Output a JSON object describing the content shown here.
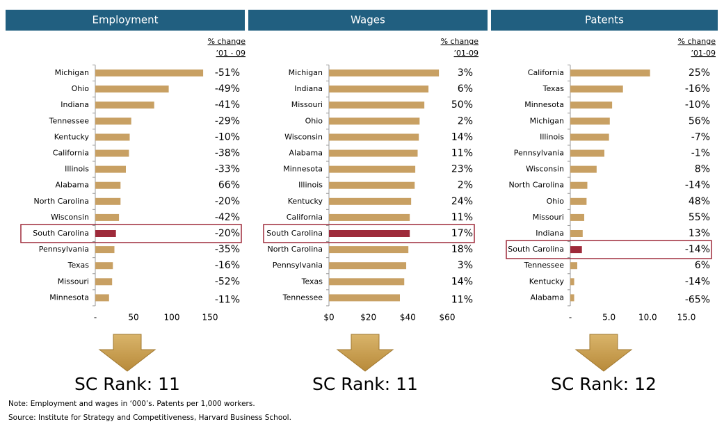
{
  "chart_data": [
    {
      "type": "bar",
      "orientation": "horizontal",
      "title": "Employment",
      "categories": [
        "Michigan",
        "Ohio",
        "Indiana",
        "Tennessee",
        "Kentucky",
        "California",
        "Illinois",
        "Alabama",
        "North Carolina",
        "Wisconsin",
        "South Carolina",
        "Pennsylvania",
        "Texas",
        "Missouri",
        "Minnesota"
      ],
      "values": [
        141,
        96,
        77,
        47,
        45,
        44,
        40,
        33,
        33,
        31,
        27,
        25,
        23,
        22,
        18
      ],
      "colors": [
        "#c8a063",
        "#c8a063",
        "#c8a063",
        "#c8a063",
        "#c8a063",
        "#c8a063",
        "#c8a063",
        "#c8a063",
        "#c8a063",
        "#c8a063",
        "#9e2a3a",
        "#c8a063",
        "#c8a063",
        "#c8a063",
        "#c8a063"
      ],
      "xlim": [
        0,
        150
      ],
      "xticks": [
        {
          "value": 0,
          "label": "-"
        },
        50,
        100,
        150
      ],
      "change_header": [
        "% change",
        "’01 - 09"
      ],
      "change_labels": [
        "-51%",
        "-49%",
        "-41%",
        "-29%",
        "-10%",
        "-38%",
        "-33%",
        "66%",
        "-20%",
        "-42%",
        "-20%",
        "-35%",
        "-16%",
        "-52%",
        "-11%"
      ],
      "rank": "SC Rank: 11"
    },
    {
      "type": "bar",
      "orientation": "horizontal",
      "title": "Wages",
      "categories": [
        "Michigan",
        "Indiana",
        "Missouri",
        "Ohio",
        "Wisconsin",
        "Alabama",
        "Minnesota",
        "Illinois",
        "Kentucky",
        "California",
        "South Carolina",
        "North Carolina",
        "Pennsylvania",
        "Texas",
        "Tennessee"
      ],
      "values": [
        55.8,
        50.5,
        48.4,
        46,
        45.6,
        45,
        43.8,
        43.5,
        41.7,
        41,
        41,
        40.3,
        39.2,
        38.2,
        36
      ],
      "colors": [
        "#c8a063",
        "#c8a063",
        "#c8a063",
        "#c8a063",
        "#c8a063",
        "#c8a063",
        "#c8a063",
        "#c8a063",
        "#c8a063",
        "#c8a063",
        "#9e2a3a",
        "#c8a063",
        "#c8a063",
        "#c8a063",
        "#c8a063"
      ],
      "xlim": [
        0,
        60
      ],
      "xticks": [
        {
          "value": 0,
          "label": "$0"
        },
        {
          "value": 20,
          "label": "$20"
        },
        {
          "value": 40,
          "label": "$40"
        },
        {
          "value": 60,
          "label": "$60"
        }
      ],
      "change_header": [
        "% change",
        "’01-09"
      ],
      "change_labels": [
        "3%",
        "6%",
        "50%",
        "2%",
        "14%",
        "11%",
        "23%",
        "2%",
        "24%",
        "11%",
        "17%",
        "18%",
        "3%",
        "14%",
        "11%"
      ],
      "rank": "SC Rank: 11"
    },
    {
      "type": "bar",
      "orientation": "horizontal",
      "title": "Patents",
      "categories": [
        "California",
        "Texas",
        "Minnesota",
        "Michigan",
        "Illinois",
        "Pennsylvania",
        "Wisconsin",
        "North Carolina",
        "Ohio",
        "Missouri",
        "Indiana",
        "South Carolina",
        "Tennessee",
        "Kentucky",
        "Alabama"
      ],
      "values": [
        10.3,
        6.8,
        5.4,
        5.1,
        5.0,
        4.4,
        3.4,
        2.2,
        2.1,
        1.8,
        1.6,
        1.5,
        0.9,
        0.5,
        0.5
      ],
      "colors": [
        "#c8a063",
        "#c8a063",
        "#c8a063",
        "#c8a063",
        "#c8a063",
        "#c8a063",
        "#c8a063",
        "#c8a063",
        "#c8a063",
        "#c8a063",
        "#c8a063",
        "#9e2a3a",
        "#c8a063",
        "#c8a063",
        "#c8a063"
      ],
      "xlim": [
        0,
        15
      ],
      "xticks": [
        {
          "value": 0,
          "label": "-"
        },
        {
          "value": 5,
          "label": "5.0"
        },
        {
          "value": 10,
          "label": "10.0"
        },
        {
          "value": 15,
          "label": "15.0"
        }
      ],
      "change_header": [
        "% change",
        "’01-09"
      ],
      "change_labels": [
        "25%",
        "-16%",
        "-10%",
        "56%",
        "-7%",
        "-1%",
        "8%",
        "-14%",
        "48%",
        "55%",
        "13%",
        "-14%",
        "6%",
        "-14%",
        "-65%"
      ],
      "rank": "SC Rank: 12"
    }
  ],
  "notes": [
    "Note: Employment and wages in ‘000’s.  Patents per 1,000 workers.",
    "Source: Institute for Strategy and Competitiveness, Harvard Business School."
  ]
}
